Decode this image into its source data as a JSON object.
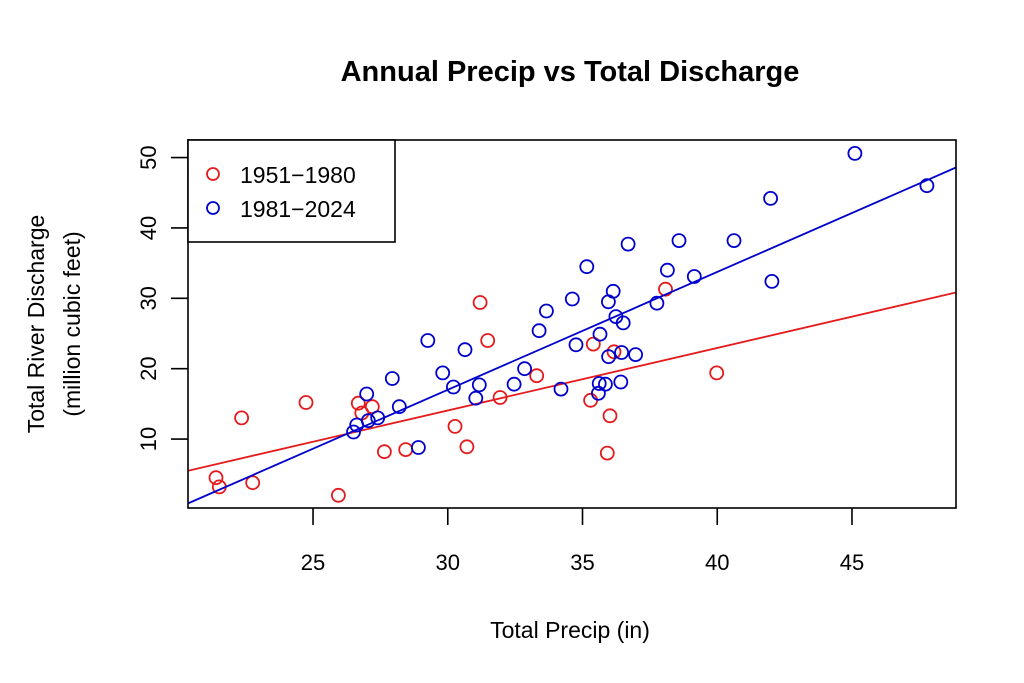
{
  "chart_data": {
    "type": "scatter",
    "title": "Annual Precip vs Total Discharge",
    "xlabel": "Total Precip (in)",
    "ylabel": [
      "Total River Discharge",
      "(million cubic feet)"
    ],
    "xlim": [
      20.36,
      48.86
    ],
    "ylim": [
      0.2,
      52.5
    ],
    "xticks": [
      25,
      30,
      35,
      40,
      45
    ],
    "yticks": [
      10,
      20,
      30,
      40,
      50
    ],
    "grid": false,
    "legend": {
      "placement": "top-left"
    },
    "series": [
      {
        "name": "1951−1980",
        "color": "#e41a1c",
        "marker": "open-circle",
        "points": [
          [
            22.35,
            13.0
          ],
          [
            24.74,
            15.2
          ],
          [
            21.4,
            4.5
          ],
          [
            21.52,
            3.2
          ],
          [
            22.76,
            3.8
          ],
          [
            25.94,
            2.0
          ],
          [
            26.68,
            15.1
          ],
          [
            26.81,
            13.7
          ],
          [
            27.2,
            14.6
          ],
          [
            27.65,
            8.2
          ],
          [
            28.44,
            8.5
          ],
          [
            30.27,
            11.8
          ],
          [
            30.71,
            8.9
          ],
          [
            31.2,
            29.4
          ],
          [
            31.48,
            24.0
          ],
          [
            31.94,
            15.9
          ],
          [
            33.3,
            19.0
          ],
          [
            35.3,
            15.5
          ],
          [
            35.4,
            23.5
          ],
          [
            36.02,
            13.3
          ],
          [
            35.92,
            8.0
          ],
          [
            36.17,
            22.4
          ],
          [
            38.08,
            31.3
          ],
          [
            39.98,
            19.4
          ]
        ],
        "fit": {
          "slope": 0.889,
          "intercept": -12.61
        }
      },
      {
        "name": "1981−2024",
        "color": "#0000cc",
        "marker": "open-circle",
        "points": [
          [
            26.5,
            11.0
          ],
          [
            26.62,
            12.0
          ],
          [
            26.99,
            16.4
          ],
          [
            27.05,
            12.6
          ],
          [
            27.4,
            13.0
          ],
          [
            27.94,
            18.6
          ],
          [
            28.2,
            14.6
          ],
          [
            28.91,
            8.8
          ],
          [
            29.26,
            24.0
          ],
          [
            29.81,
            19.4
          ],
          [
            30.21,
            17.4
          ],
          [
            30.64,
            22.7
          ],
          [
            31.04,
            15.8
          ],
          [
            31.17,
            17.7
          ],
          [
            32.46,
            17.8
          ],
          [
            32.85,
            20.0
          ],
          [
            33.39,
            25.4
          ],
          [
            33.66,
            28.2
          ],
          [
            34.2,
            17.1
          ],
          [
            34.62,
            29.9
          ],
          [
            34.76,
            23.4
          ],
          [
            35.16,
            34.5
          ],
          [
            35.59,
            16.5
          ],
          [
            35.62,
            17.9
          ],
          [
            35.85,
            17.8
          ],
          [
            35.65,
            24.9
          ],
          [
            35.96,
            29.5
          ],
          [
            35.97,
            21.7
          ],
          [
            36.14,
            31.0
          ],
          [
            36.24,
            27.4
          ],
          [
            36.42,
            18.1
          ],
          [
            36.45,
            22.3
          ],
          [
            36.51,
            26.5
          ],
          [
            36.69,
            37.7
          ],
          [
            36.97,
            22.0
          ],
          [
            37.76,
            29.3
          ],
          [
            38.15,
            34.0
          ],
          [
            38.58,
            38.2
          ],
          [
            39.15,
            33.1
          ],
          [
            40.62,
            38.2
          ],
          [
            41.98,
            44.2
          ],
          [
            42.03,
            32.4
          ],
          [
            45.11,
            50.6
          ],
          [
            47.78,
            46.0
          ]
        ],
        "fit": {
          "slope": 1.675,
          "intercept": -33.25
        }
      }
    ]
  }
}
